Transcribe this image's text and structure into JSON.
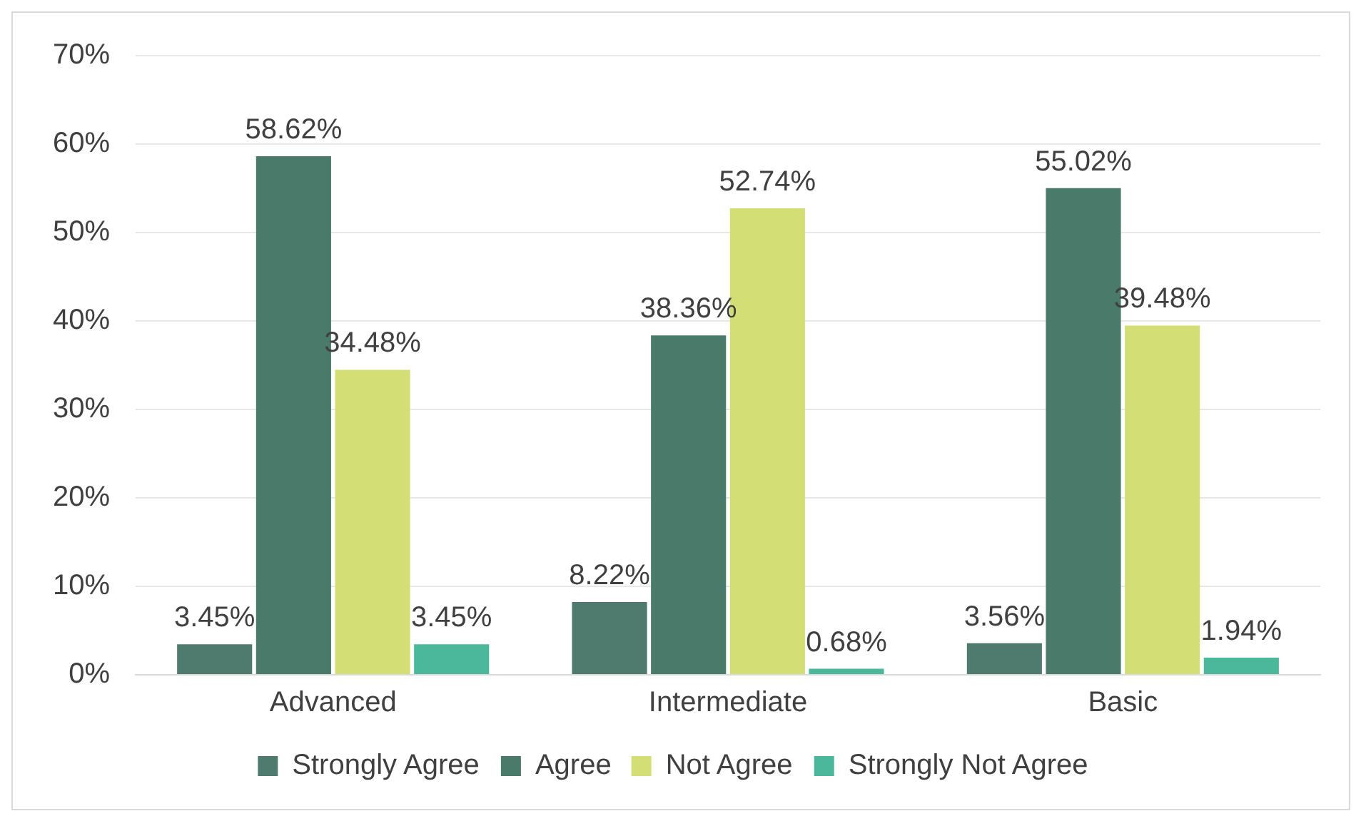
{
  "chart_data": {
    "type": "bar",
    "categories": [
      "Advanced",
      "Intermediate",
      "Basic"
    ],
    "series": [
      {
        "name": "Strongly Agree",
        "color": "#4f7b6f",
        "values": [
          3.45,
          8.22,
          3.56
        ],
        "value_labels": [
          "3.45%",
          "8.22%",
          "3.56%"
        ]
      },
      {
        "name": "Agree",
        "color": "#4a7a6a",
        "values": [
          58.62,
          38.36,
          55.02
        ],
        "value_labels": [
          "58.62%",
          "38.36%",
          "55.02%"
        ]
      },
      {
        "name": "Not Agree",
        "color": "#d3de75",
        "values": [
          34.48,
          52.74,
          39.48
        ],
        "value_labels": [
          "34.48%",
          "52.74%",
          "39.48%"
        ]
      },
      {
        "name": "Strongly Not Agree",
        "color": "#4cb89b",
        "values": [
          3.45,
          0.68,
          1.94
        ],
        "value_labels": [
          "3.45%",
          "0.68%",
          "1.94%"
        ]
      }
    ],
    "ylim": [
      0,
      70
    ],
    "yticks": [
      {
        "value": 0,
        "label": "0%"
      },
      {
        "value": 10,
        "label": "10%"
      },
      {
        "value": 20,
        "label": "20%"
      },
      {
        "value": 30,
        "label": "30%"
      },
      {
        "value": 40,
        "label": "40%"
      },
      {
        "value": 50,
        "label": "50%"
      },
      {
        "value": 60,
        "label": "60%"
      },
      {
        "value": 70,
        "label": "70%"
      }
    ],
    "grid": "y",
    "legend": "bottom"
  }
}
